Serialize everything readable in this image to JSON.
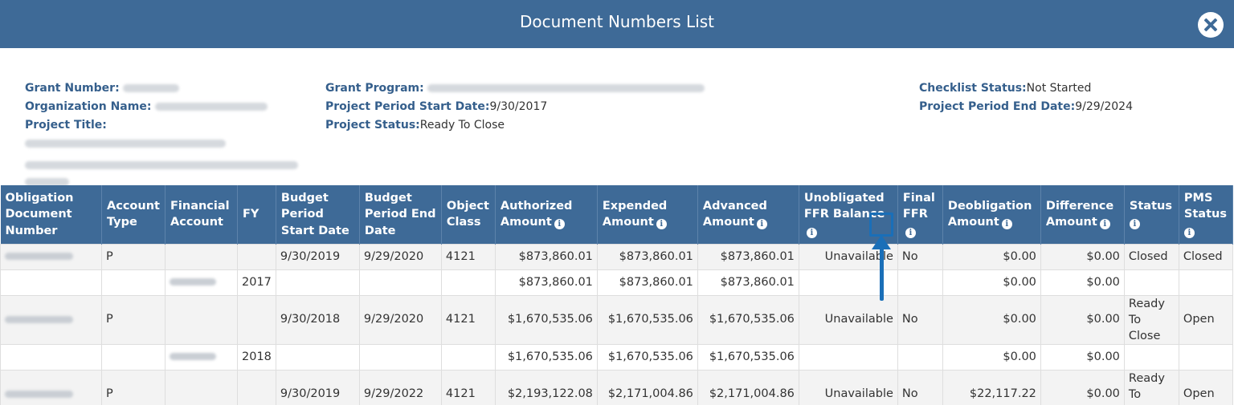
{
  "dialog": {
    "title": "Document Numbers List"
  },
  "info": {
    "grant_number": {
      "label": "Grant Number:"
    },
    "organization_name": {
      "label": "Organization Name:"
    },
    "project_title": {
      "label": "Project Title:"
    },
    "grant_program": {
      "label": "Grant Program:"
    },
    "project_period_start": {
      "label": "Project Period Start Date:",
      "value": "9/30/2017"
    },
    "project_status": {
      "label": "Project Status:",
      "value": "Ready To Close"
    },
    "checklist_status": {
      "label": "Checklist Status:",
      "value": "Not Started"
    },
    "project_period_end": {
      "label": "Project Period End Date:",
      "value": "9/29/2024"
    }
  },
  "table": {
    "headers": {
      "obligation": "Obligation Document Number",
      "account_type": "Account Type",
      "financial_account": "Financial Account",
      "fy": "FY",
      "budget_start": "Budget Period Start Date",
      "budget_end": "Budget Period End Date",
      "object_class": "Object Class",
      "authorized": "Authorized Amount",
      "expended": "Expended Amount",
      "advanced": "Advanced Amount",
      "unobligated": "Unobligated FFR Balance",
      "final_ffr": "Final FFR",
      "deobligation": "Deobligation Amount",
      "difference": "Difference Amount",
      "status": "Status",
      "pms_status": "PMS Status"
    },
    "rows": [
      {
        "account_type": "P",
        "fy": "",
        "start": "9/30/2019",
        "end": "9/29/2020",
        "object_class": "4121",
        "authorized": "$873,860.01",
        "expended": "$873,860.01",
        "advanced": "$873,860.01",
        "unobligated": "Unavailable",
        "final_ffr": "No",
        "deobligation": "$0.00",
        "difference": "$0.00",
        "status": "Closed",
        "pms": "Closed"
      },
      {
        "account_type": "",
        "fy": "2017",
        "start": "",
        "end": "",
        "object_class": "",
        "authorized": "$873,860.01",
        "expended": "$873,860.01",
        "advanced": "$873,860.01",
        "unobligated": "",
        "final_ffr": "",
        "deobligation": "$0.00",
        "difference": "$0.00",
        "status": "",
        "pms": ""
      },
      {
        "account_type": "P",
        "fy": "",
        "start": "9/30/2018",
        "end": "9/29/2020",
        "object_class": "4121",
        "authorized": "$1,670,535.06",
        "expended": "$1,670,535.06",
        "advanced": "$1,670,535.06",
        "unobligated": "Unavailable",
        "final_ffr": "No",
        "deobligation": "$0.00",
        "difference": "$0.00",
        "status": "Ready To Close",
        "pms": "Open"
      },
      {
        "account_type": "",
        "fy": "2018",
        "start": "",
        "end": "",
        "object_class": "",
        "authorized": "$1,670,535.06",
        "expended": "$1,670,535.06",
        "advanced": "$1,670,535.06",
        "unobligated": "",
        "final_ffr": "",
        "deobligation": "$0.00",
        "difference": "$0.00",
        "status": "",
        "pms": ""
      },
      {
        "account_type": "P",
        "fy": "",
        "start": "9/30/2019",
        "end": "9/29/2022",
        "object_class": "4121",
        "authorized": "$2,193,122.08",
        "expended": "$2,171,004.86",
        "advanced": "$2,171,004.86",
        "unobligated": "Unavailable",
        "final_ffr": "No",
        "deobligation": "$22,117.22",
        "difference": "$0.00",
        "status": "Ready To Close",
        "pms": "Open"
      }
    ]
  },
  "colors": {
    "header_blue": "#3e6a97",
    "label_blue": "#355f8c",
    "annotation_blue": "#1a6fb8"
  },
  "icons": {
    "close": "close-circle-icon",
    "info": "info-circle-icon"
  }
}
